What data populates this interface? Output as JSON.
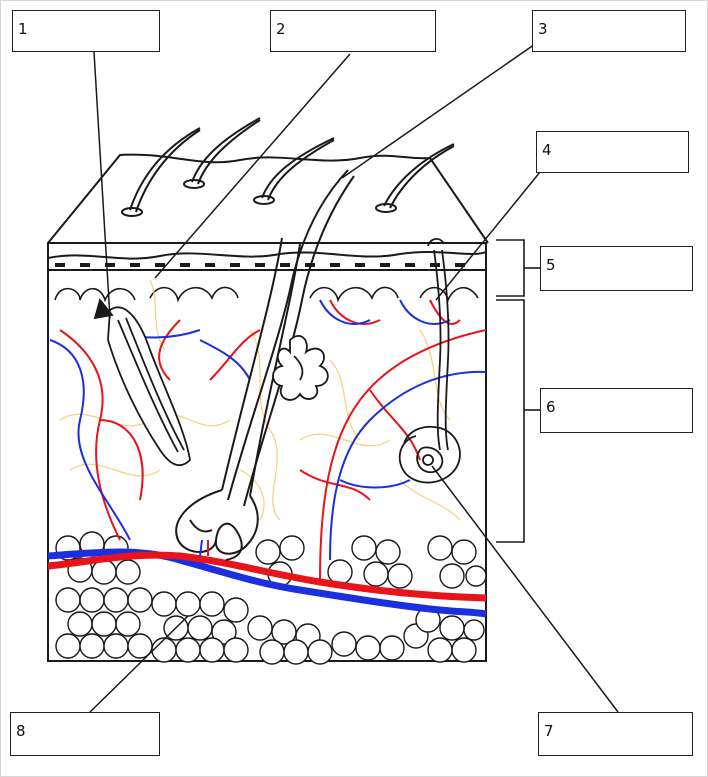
{
  "labels": [
    {
      "id": "1",
      "number": "1"
    },
    {
      "id": "2",
      "number": "2"
    },
    {
      "id": "3",
      "number": "3"
    },
    {
      "id": "4",
      "number": "4"
    },
    {
      "id": "5",
      "number": "5"
    },
    {
      "id": "6",
      "number": "6"
    },
    {
      "id": "7",
      "number": "7"
    },
    {
      "id": "8",
      "number": "8"
    }
  ],
  "colors": {
    "artery": "#e8141b",
    "vein": "#1b2fe0",
    "nerve": "#f4d27a",
    "outline": "#1a1a1a"
  }
}
